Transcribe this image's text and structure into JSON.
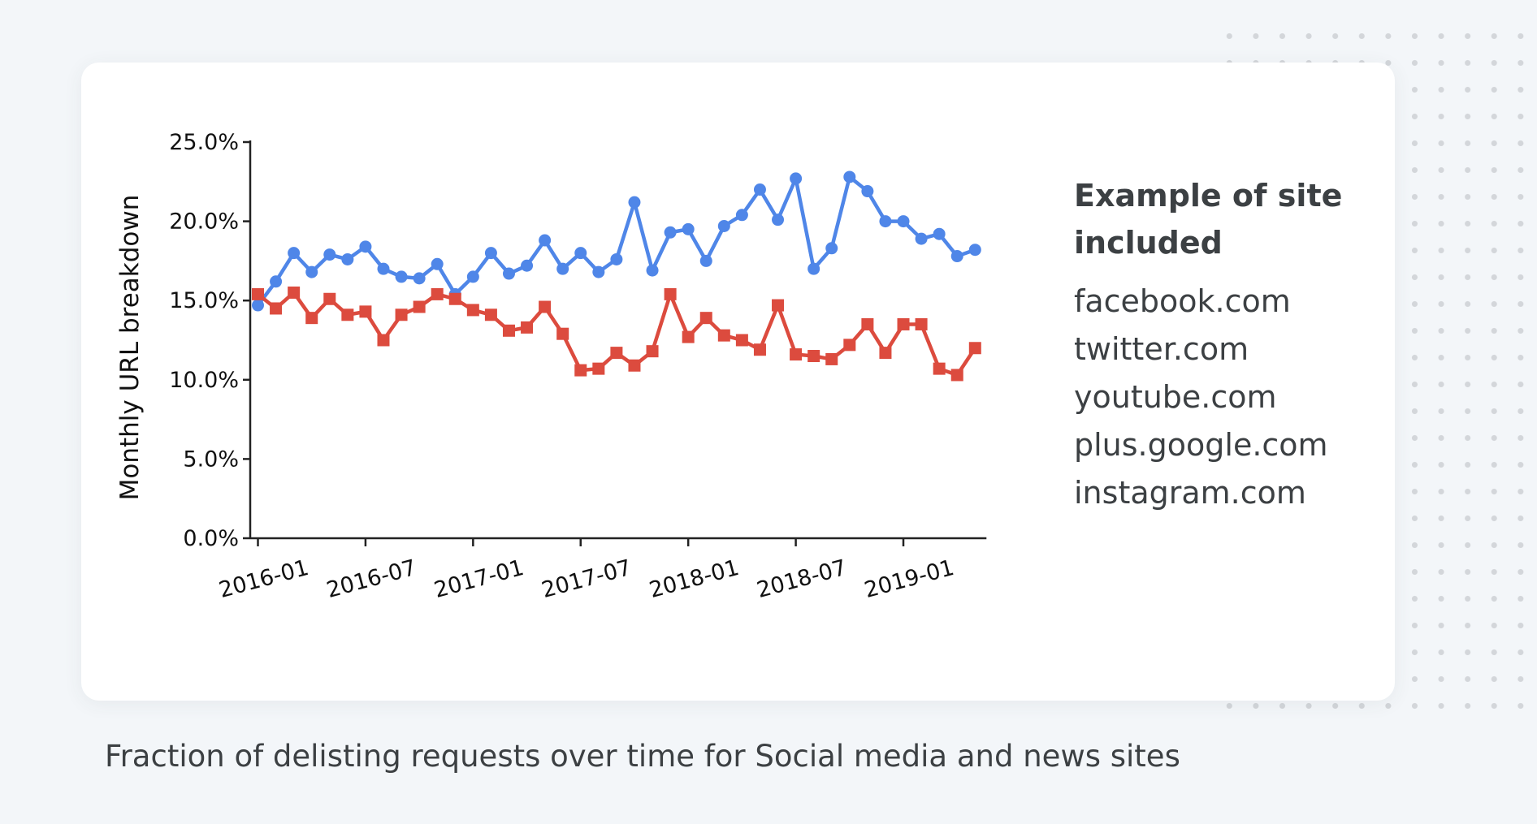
{
  "legend": {
    "title": "Example of site included",
    "sites": [
      "facebook.com",
      "twitter.com",
      "youtube.com",
      "plus.google.com",
      "instagram.com"
    ]
  },
  "caption": "Fraction of delisting requests over time for Social media and news sites",
  "chart_data": {
    "type": "line",
    "title": "",
    "xlabel": "",
    "ylabel": "Monthly URL breakdown",
    "ylim": [
      0,
      25
    ],
    "y_ticks": [
      "0.0%",
      "5.0%",
      "10.0%",
      "15.0%",
      "20.0%",
      "25.0%"
    ],
    "x_ticks": [
      "2016-01",
      "2016-07",
      "2017-01",
      "2017-07",
      "2018-01",
      "2018-07",
      "2019-01"
    ],
    "x_start": "2016-01",
    "x_end": "2019-05",
    "grid": false,
    "series": [
      {
        "color": "#4f86e8",
        "marker": "circle",
        "values": [
          14.7,
          16.2,
          18.0,
          16.8,
          17.9,
          17.6,
          18.4,
          17.0,
          16.5,
          16.4,
          17.3,
          15.4,
          16.5,
          18.0,
          16.7,
          17.2,
          18.8,
          17.0,
          18.0,
          16.8,
          17.6,
          21.2,
          16.9,
          19.3,
          19.5,
          17.5,
          19.7,
          20.4,
          22.0,
          20.1,
          22.7,
          17.0,
          18.3,
          22.8,
          21.9,
          20.0,
          20.0,
          18.9,
          19.2,
          17.8,
          18.2
        ]
      },
      {
        "color": "#dc4b3e",
        "marker": "square",
        "values": [
          15.4,
          14.5,
          15.5,
          13.9,
          15.1,
          14.1,
          14.3,
          12.5,
          14.1,
          14.6,
          15.4,
          15.1,
          14.4,
          14.1,
          13.1,
          13.3,
          14.6,
          12.9,
          10.6,
          10.7,
          11.7,
          10.9,
          11.8,
          15.4,
          12.7,
          13.9,
          12.8,
          12.5,
          11.9,
          14.7,
          11.6,
          11.5,
          11.3,
          12.2,
          13.5,
          11.7,
          13.5,
          13.5,
          10.7,
          10.3,
          12.0
        ]
      }
    ]
  }
}
